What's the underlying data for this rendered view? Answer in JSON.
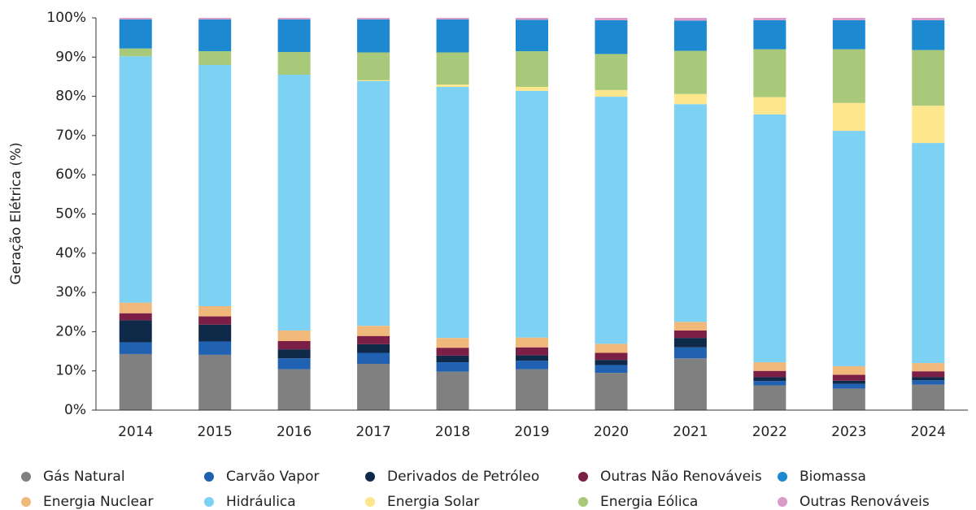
{
  "chart_data": {
    "type": "stacked_bar",
    "ylabel": "Geração Elétrica (%)",
    "categories": [
      "2014",
      "2015",
      "2016",
      "2017",
      "2018",
      "2019",
      "2020",
      "2021",
      "2022",
      "2023",
      "2024"
    ],
    "ylim": [
      0,
      100
    ],
    "yticks": [
      {
        "value": 0,
        "label": "0%"
      },
      {
        "value": 10,
        "label": "10%"
      },
      {
        "value": 20,
        "label": "20%"
      },
      {
        "value": 30,
        "label": "30%"
      },
      {
        "value": 40,
        "label": "40%"
      },
      {
        "value": 50,
        "label": "50%"
      },
      {
        "value": 60,
        "label": "60%"
      },
      {
        "value": 70,
        "label": "70%"
      },
      {
        "value": 80,
        "label": "80%"
      },
      {
        "value": 90,
        "label": "90%"
      },
      {
        "value": 100,
        "label": "100%"
      }
    ],
    "grid": false,
    "legend": "bottom",
    "series": [
      {
        "name": "Gás Natural",
        "color": "#808080",
        "values": [
          14.3,
          14.1,
          10.4,
          11.8,
          9.8,
          10.4,
          9.5,
          13.2,
          6.3,
          5.5,
          6.5
        ]
      },
      {
        "name": "Carvão Vapor",
        "color": "#2161b1",
        "values": [
          3.0,
          3.4,
          2.8,
          2.8,
          2.4,
          2.2,
          2.0,
          2.8,
          1.1,
          1.2,
          1.1
        ]
      },
      {
        "name": "Derivados de Petróleo",
        "color": "#0e2a48",
        "values": [
          5.6,
          4.3,
          2.3,
          2.2,
          1.7,
          1.4,
          1.3,
          2.4,
          1.0,
          0.8,
          0.8
        ]
      },
      {
        "name": "Outras Não Renováveis",
        "color": "#7b1f46",
        "values": [
          1.8,
          2.1,
          2.1,
          2.1,
          2.0,
          2.0,
          1.8,
          1.9,
          1.6,
          1.5,
          1.5
        ]
      },
      {
        "name": "Energia Nuclear",
        "color": "#f1b87c",
        "values": [
          2.7,
          2.6,
          2.7,
          2.6,
          2.5,
          2.5,
          2.3,
          2.2,
          2.2,
          2.2,
          2.1
        ]
      },
      {
        "name": "Hidráulica",
        "color": "#7dd1f3",
        "values": [
          62.8,
          61.5,
          65.2,
          62.4,
          64.0,
          62.9,
          63.0,
          55.5,
          63.2,
          60.0,
          56.1
        ]
      },
      {
        "name": "Energia Solar",
        "color": "#fee68c",
        "values": [
          0.0,
          0.0,
          0.0,
          0.2,
          0.6,
          1.0,
          1.7,
          2.6,
          4.4,
          7.1,
          9.5
        ]
      },
      {
        "name": "Energia Eólica",
        "color": "#a9c97a",
        "values": [
          2.0,
          3.5,
          5.8,
          7.1,
          8.2,
          9.1,
          9.2,
          11.0,
          12.2,
          13.7,
          14.2
        ]
      },
      {
        "name": "Biomassa",
        "color": "#1d89d0",
        "values": [
          7.4,
          8.1,
          8.3,
          8.4,
          8.4,
          8.0,
          8.6,
          7.7,
          7.4,
          7.4,
          7.6
        ]
      },
      {
        "name": "Outras Renováveis",
        "color": "#d99bca",
        "values": [
          0.4,
          0.4,
          0.4,
          0.4,
          0.4,
          0.5,
          0.6,
          0.7,
          0.6,
          0.6,
          0.6
        ]
      }
    ]
  }
}
